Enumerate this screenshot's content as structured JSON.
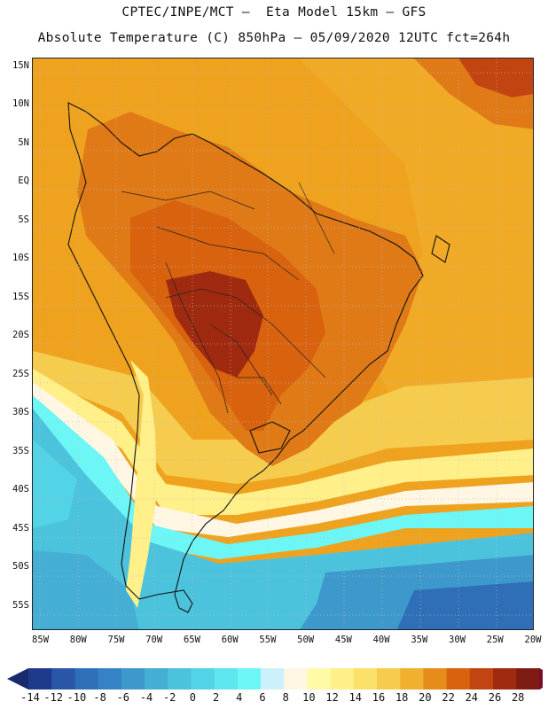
{
  "header": {
    "line1": "CPTEC/INPE/MCT –  Eta Model 15km – GFS",
    "line2": "Absolute Temperature (C) 850hPa – 05/09/2020 12UTC fct=264h"
  },
  "map": {
    "lat_labels": [
      "15N",
      "10N",
      "5N",
      "EQ",
      "5S",
      "10S",
      "15S",
      "20S",
      "25S",
      "30S",
      "35S",
      "40S",
      "45S",
      "50S",
      "55S"
    ],
    "lon_labels": [
      "85W",
      "80W",
      "75W",
      "70W",
      "65W",
      "60W",
      "55W",
      "50W",
      "45W",
      "40W",
      "35W",
      "30W",
      "25W",
      "20W"
    ],
    "lat_values": [
      15,
      10,
      5,
      0,
      -5,
      -10,
      -15,
      -20,
      -25,
      -30,
      -35,
      -40,
      -45,
      -50,
      -55
    ],
    "lon_values": [
      -85,
      -80,
      -75,
      -70,
      -65,
      -60,
      -55,
      -50,
      -45,
      -40,
      -35,
      -30,
      -25,
      -20
    ],
    "extent": {
      "lon_min": -86,
      "lon_max": -20,
      "lat_min": -58,
      "lat_max": 16
    }
  },
  "colorbar": {
    "labels": [
      "-14",
      "-12",
      "-10",
      "-8",
      "-6",
      "-4",
      "-2",
      "0",
      "2",
      "4",
      "6",
      "8",
      "10",
      "12",
      "14",
      "16",
      "18",
      "20",
      "22",
      "24",
      "26",
      "28"
    ],
    "under_color": "#1a2a6e",
    "over_color": "#7a0a2a",
    "colors": [
      "#1f3a8c",
      "#2a56a8",
      "#2f6fb8",
      "#3583c4",
      "#3d99cc",
      "#45aed4",
      "#4cc3dc",
      "#52d3e6",
      "#5ee5ee",
      "#6cf6f6",
      "#cdf1fa",
      "#fff7e4",
      "#fffaa6",
      "#fff08a",
      "#fbe06a",
      "#f6cc4e",
      "#f0b030",
      "#e68c1a",
      "#d8620e",
      "#c24410",
      "#a02a10",
      "#7e1c14"
    ]
  }
}
